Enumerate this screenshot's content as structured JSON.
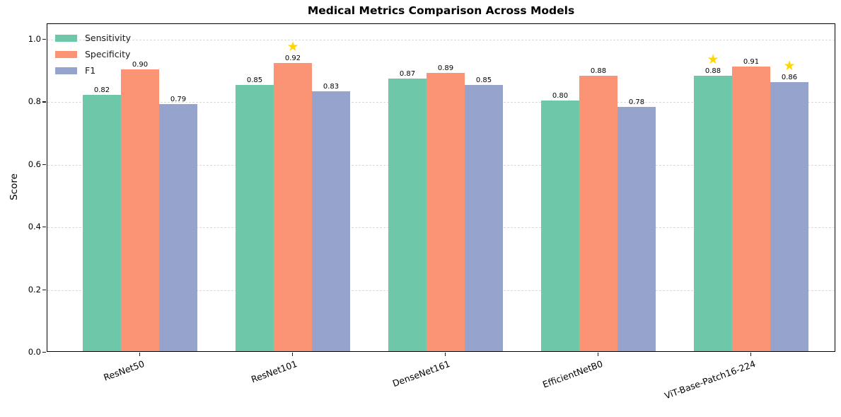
{
  "figure": {
    "background": "#ffffff",
    "axis_color": "#000000",
    "grid_color": "#d9d9d9",
    "star_color": "#ffd700",
    "star_glyph": "★"
  },
  "chart_data": {
    "type": "bar",
    "title": "Medical Metrics Comparison Across Models",
    "xlabel": "",
    "ylabel": "Score",
    "categories": [
      "ResNet50",
      "ResNet101",
      "DenseNet161",
      "EfficientNetB0",
      "ViT-Base-Patch16-224"
    ],
    "series": [
      {
        "name": "Sensitivity",
        "color": "#6fc7a9",
        "values": [
          0.82,
          0.85,
          0.87,
          0.8,
          0.88
        ],
        "starred": [
          false,
          false,
          false,
          false,
          true
        ]
      },
      {
        "name": "Specificity",
        "color": "#fa9474",
        "values": [
          0.9,
          0.92,
          0.89,
          0.88,
          0.91
        ],
        "starred": [
          false,
          true,
          false,
          false,
          false
        ]
      },
      {
        "name": "F1",
        "color": "#95a3cd",
        "values": [
          0.79,
          0.83,
          0.85,
          0.78,
          0.86
        ],
        "starred": [
          false,
          false,
          false,
          false,
          true
        ]
      }
    ],
    "value_label_format": "2-decimals",
    "yticks": [
      "0.0",
      "0.2",
      "0.4",
      "0.6",
      "0.8",
      "1.0"
    ],
    "ylim": [
      0.0,
      1.05
    ],
    "grid": "horizontal-dashed",
    "legend_position": "upper-left"
  }
}
